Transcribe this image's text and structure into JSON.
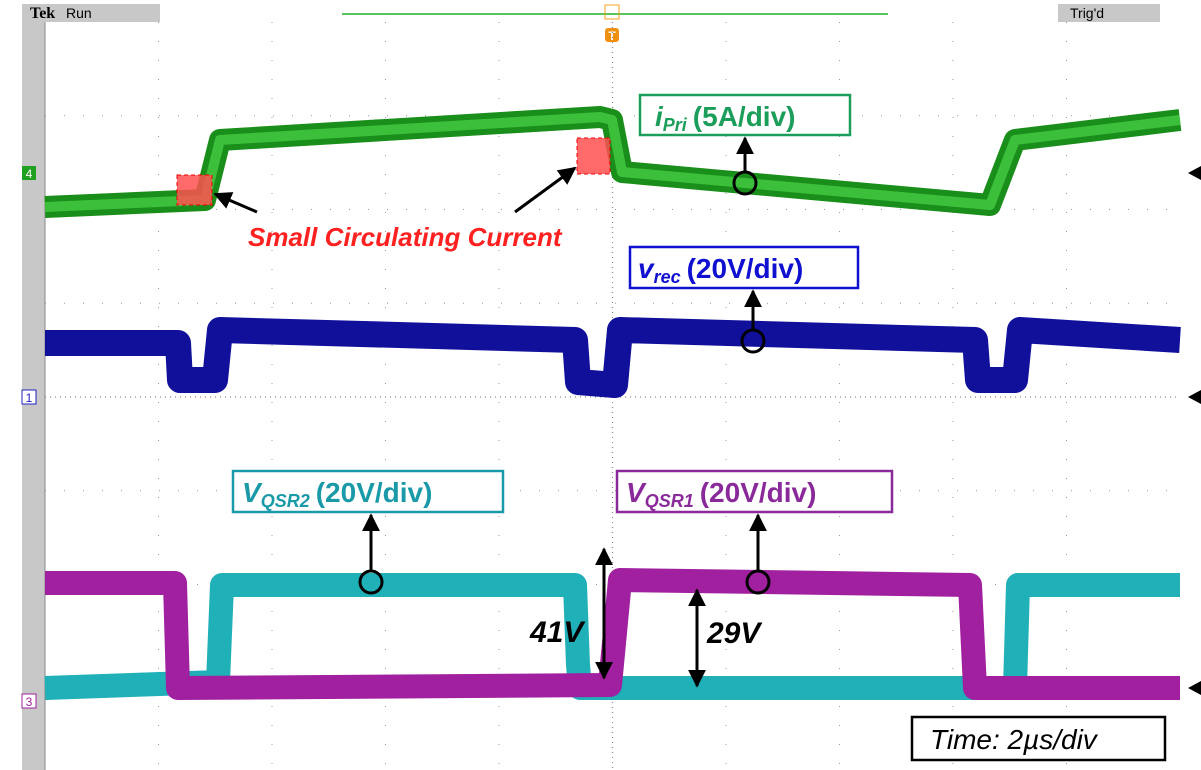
{
  "header": {
    "brand": "Tek",
    "status": "Run",
    "trigger": "Trig'd"
  },
  "channel_markers": {
    "ch4": "4",
    "ch1": "1",
    "ch3": "3"
  },
  "trigger_marker": "T",
  "labels": {
    "i_pri": {
      "symbol": "i",
      "subscript": "Pri",
      "scale": "(5A/div)"
    },
    "v_rec": {
      "symbol": "v",
      "subscript": "rec",
      "scale": "(20V/div)"
    },
    "v_qsr2": {
      "symbol": "V",
      "subscript": "QSR2",
      "scale": "(20V/div)"
    },
    "v_qsr1": {
      "symbol": "V",
      "subscript": "QSR1",
      "scale": "(20V/div)"
    }
  },
  "annotations": {
    "circulating": "Small Circulating Current",
    "v41": "41V",
    "v29": "29V",
    "timebase": "Time: 2µs/div"
  }
}
